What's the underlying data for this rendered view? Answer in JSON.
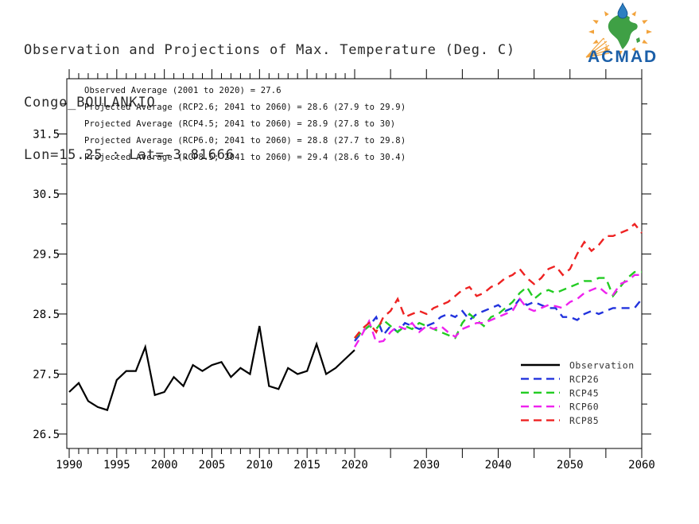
{
  "header": {
    "line1": "Observation and Projections of Max. Temperature (Deg. C)",
    "line2": "Congo_BOULANKIO",
    "line3": "Lon=15.25 : Lat=-3.81666"
  },
  "logo": {
    "text": "ACMAD",
    "colors": {
      "rays": "#f2a33c",
      "africa": "#3fa045",
      "drop": "#2d7fc1",
      "text": "#1b5fa8"
    }
  },
  "chart_data": {
    "type": "line",
    "title": "Observation and Projections of Max. Temperature (Deg. C)",
    "subtitle": "Congo_BOULANKIO",
    "location": "Lon=15.25 : Lat=-3.81666",
    "xlabel": "",
    "ylabel": "",
    "ylim": [
      26.26,
      32.42
    ],
    "yticks_major": [
      26.5,
      27.5,
      28.5,
      29.5,
      30.5,
      31.5
    ],
    "yticks_minor": [
      27.0,
      28.0,
      29.0,
      30.0,
      31.0,
      32.0
    ],
    "x_axis": {
      "start": 1990,
      "break_year": 2020,
      "end": 2060,
      "minor_step_before_break": 1,
      "major_step_before_break": 5,
      "tick_step_after_break": 5,
      "labeled_ticks": [
        1990,
        1995,
        2000,
        2005,
        2010,
        2015,
        2020,
        2030,
        2040,
        2050,
        2060
      ]
    },
    "grid": false,
    "annotations": [
      "Observed Average (2001 to 2020) = 27.6",
      "Projected Average (RCP2.6; 2041 to 2060) = 28.6 (27.9 to 29.9)",
      "Projected Average (RCP4.5; 2041 to 2060) = 28.9 (27.8 to 30)",
      "Projected Average (RCP6.0; 2041 to 2060) = 28.8 (27.7 to 29.8)",
      "Projected Average (RCP8.5; 2041 to 2060) = 29.4 (28.6 to 30.4)"
    ],
    "legend": {
      "position": "bottom-right",
      "entries": [
        {
          "label": "Observation",
          "color": "#000000",
          "dashed": false
        },
        {
          "label": "RCP26",
          "color": "#2233dd",
          "dashed": true
        },
        {
          "label": "RCP45",
          "color": "#22cc22",
          "dashed": true
        },
        {
          "label": "RCP60",
          "color": "#ee22ee",
          "dashed": true
        },
        {
          "label": "RCP85",
          "color": "#ee2222",
          "dashed": true
        }
      ]
    },
    "series": [
      {
        "name": "Observation",
        "color": "#000000",
        "dashed": false,
        "start_year": 1990,
        "values": [
          27.2,
          27.35,
          27.05,
          26.95,
          26.9,
          27.4,
          27.55,
          27.55,
          27.95,
          27.15,
          27.2,
          27.45,
          27.3,
          27.65,
          27.55,
          27.65,
          27.7,
          27.45,
          27.6,
          27.5,
          28.3,
          27.3,
          27.25,
          27.6,
          27.5,
          27.55,
          28.0,
          27.5,
          27.6,
          27.75,
          27.9
        ]
      },
      {
        "name": "RCP26",
        "color": "#2233dd",
        "dashed": true,
        "start_year": 2020,
        "values": [
          28.05,
          28.2,
          28.3,
          28.45,
          28.15,
          28.3,
          28.2,
          28.35,
          28.3,
          28.25,
          28.3,
          28.35,
          28.45,
          28.5,
          28.45,
          28.55,
          28.4,
          28.5,
          28.55,
          28.6,
          28.65,
          28.55,
          28.6,
          28.75,
          28.65,
          28.7,
          28.65,
          28.6,
          28.6,
          28.45,
          28.45,
          28.4,
          28.5,
          28.55,
          28.5,
          28.55,
          28.6,
          28.6,
          28.6,
          28.6,
          28.75
        ]
      },
      {
        "name": "RCP45",
        "color": "#22cc22",
        "dashed": true,
        "start_year": 2020,
        "values": [
          28.1,
          28.2,
          28.3,
          28.25,
          28.4,
          28.3,
          28.2,
          28.3,
          28.25,
          28.35,
          28.3,
          28.25,
          28.2,
          28.15,
          28.1,
          28.35,
          28.5,
          28.4,
          28.3,
          28.45,
          28.5,
          28.6,
          28.7,
          28.85,
          28.95,
          28.75,
          28.85,
          28.9,
          28.85,
          28.9,
          28.95,
          29.0,
          29.05,
          29.05,
          29.1,
          29.1,
          28.8,
          28.95,
          29.1,
          29.2,
          29.2
        ]
      },
      {
        "name": "RCP60",
        "color": "#ee22ee",
        "dashed": true,
        "start_year": 2020,
        "values": [
          27.95,
          28.15,
          28.38,
          28.03,
          28.05,
          28.2,
          28.3,
          28.25,
          28.35,
          28.2,
          28.3,
          28.25,
          28.3,
          28.2,
          28.12,
          28.25,
          28.3,
          28.35,
          28.35,
          28.4,
          28.45,
          28.5,
          28.55,
          28.75,
          28.6,
          28.55,
          28.6,
          28.65,
          28.63,
          28.6,
          28.7,
          28.75,
          28.85,
          28.9,
          28.95,
          28.85,
          28.82,
          29.0,
          29.05,
          29.15,
          29.15
        ]
      },
      {
        "name": "RCP85",
        "color": "#ee2222",
        "dashed": true,
        "start_year": 2020,
        "values": [
          28.1,
          28.25,
          28.35,
          28.2,
          28.45,
          28.55,
          28.75,
          28.45,
          28.5,
          28.55,
          28.5,
          28.6,
          28.65,
          28.7,
          28.8,
          28.9,
          28.95,
          28.8,
          28.85,
          28.95,
          29.0,
          29.1,
          29.15,
          29.25,
          29.1,
          29.0,
          29.1,
          29.25,
          29.3,
          29.15,
          29.25,
          29.5,
          29.7,
          29.55,
          29.65,
          29.8,
          29.8,
          29.85,
          29.9,
          30.0,
          29.85
        ]
      }
    ]
  }
}
